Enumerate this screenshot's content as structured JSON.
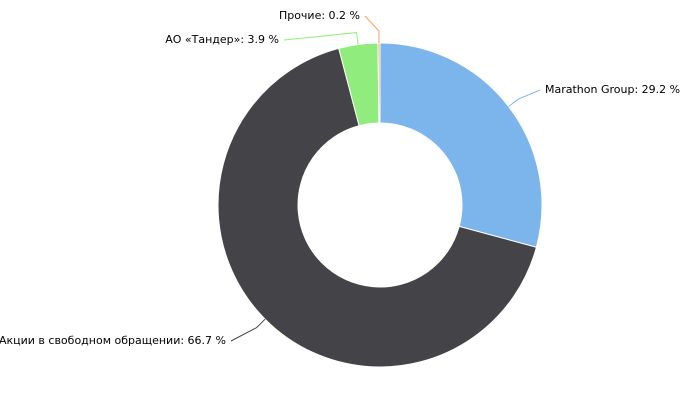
{
  "chart_data": {
    "type": "donut",
    "values": [
      29.2,
      66.7,
      3.9,
      0.2
    ],
    "value_labels": [
      "Marathon Group: 29.2 %",
      "Акции в свободном обращении: 66.7 %",
      "АО «Тандер»: 3.9 %",
      "Прочие: 0.2 %"
    ],
    "colors": [
      "#7cb5ec",
      "#434348",
      "#90ed7d",
      "#f7a35c"
    ]
  }
}
